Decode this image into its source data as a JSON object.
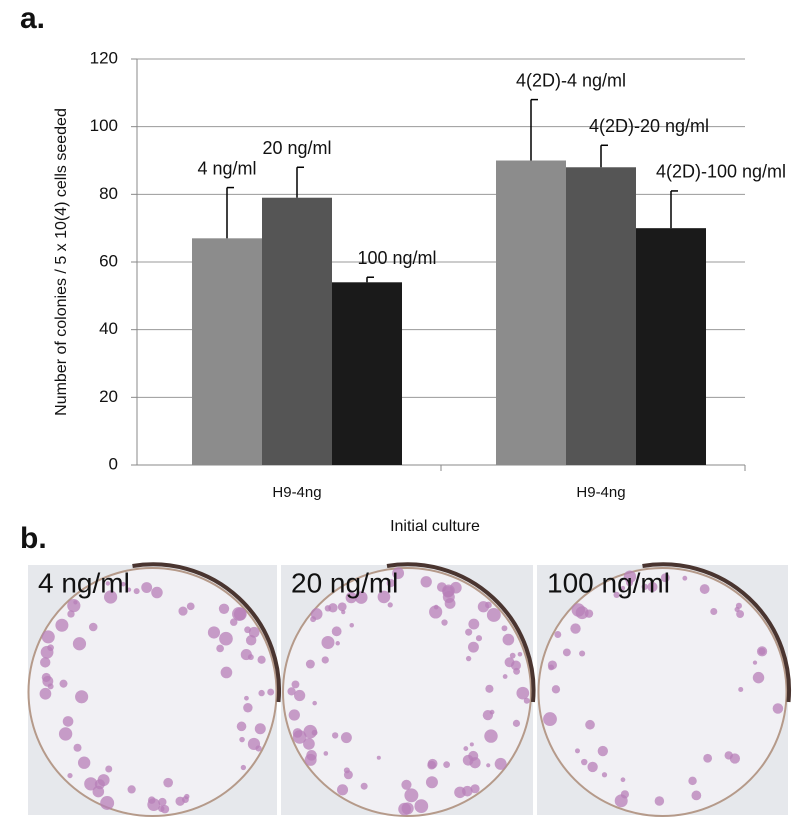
{
  "panel_labels": [
    "a.",
    "b."
  ],
  "chart_data": {
    "type": "bar",
    "y_label": "Number of colonies / 5 x 10(4) cells seeded",
    "x_label": "Initial culture",
    "categories": [
      "H9-4ng",
      "H9-4ng"
    ],
    "series": [
      {
        "color": "#8c8c8c",
        "values": [
          67,
          90
        ],
        "errors": [
          15,
          18
        ],
        "labels": [
          "4 ng/ml",
          "4(2D)-4 ng/ml"
        ]
      },
      {
        "color": "#555555",
        "values": [
          79,
          88
        ],
        "errors": [
          9,
          6.5
        ],
        "labels": [
          "20 ng/ml",
          "4(2D)-20 ng/ml"
        ]
      },
      {
        "color": "#1a1a1a",
        "values": [
          54,
          70
        ],
        "errors": [
          1.5,
          11
        ],
        "labels": [
          "100 ng/ml",
          "4(2D)-100 ng/ml"
        ]
      }
    ],
    "ylim": [
      0,
      120
    ],
    "yticks": [
      0,
      20,
      40,
      60,
      80,
      100,
      120
    ],
    "grid": true
  },
  "image_labels": [
    "4 ng/ml",
    "20 ng/ml",
    "100 ng/ml"
  ]
}
